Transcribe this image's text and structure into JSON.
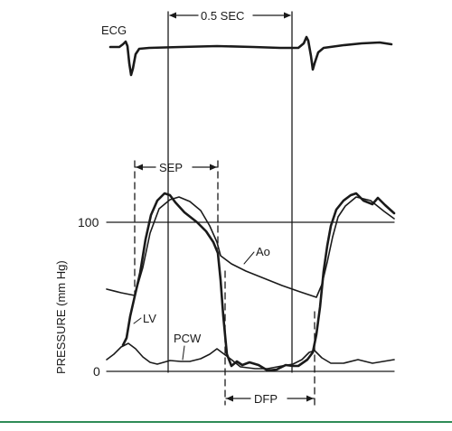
{
  "figure": {
    "ecg_label": "ECG",
    "time_scale_label": "0.5 SEC",
    "sep_label": "SEP",
    "dfp_label": "DFP",
    "y_axis_label": "PRESSURE (mm Hg)",
    "y_tick_100": "100",
    "y_tick_0": "0",
    "trace_labels": {
      "aortic": "Ao",
      "left_ventricle": "LV",
      "pulmonary_capillary_wedge": "PCW"
    },
    "colors": {
      "ink": "#1a1a1a",
      "bottom_rule": "#2e8b57",
      "background": "#ffffff"
    }
  }
}
